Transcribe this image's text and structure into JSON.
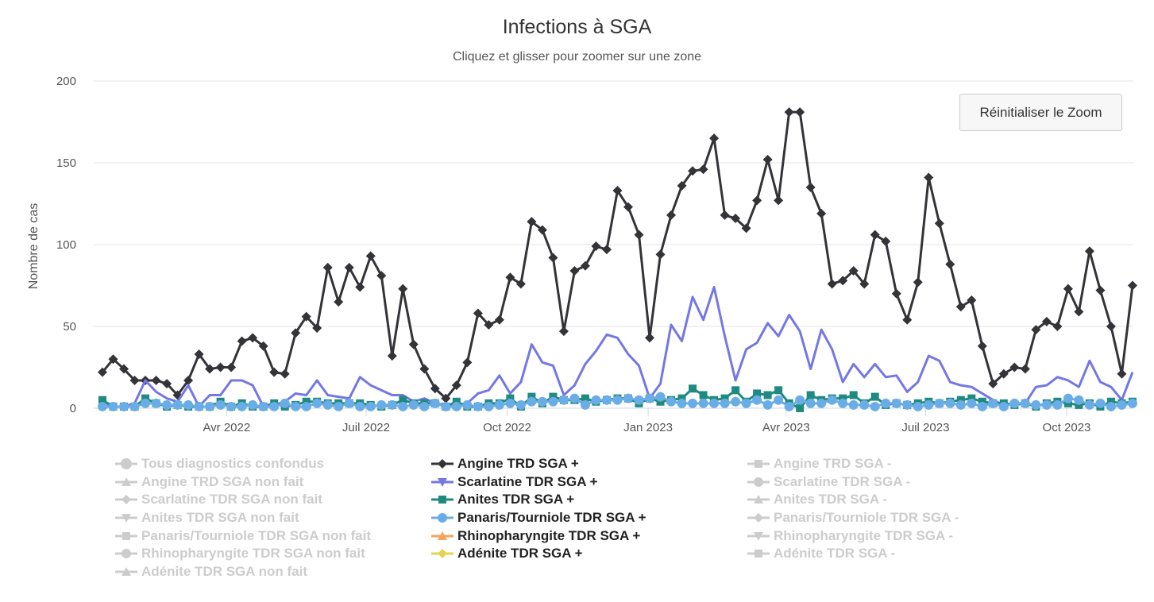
{
  "chart_data": {
    "type": "line",
    "title": "Infections à SGA",
    "subtitle": "Cliquez et glisser pour zoomer sur une zone",
    "ylabel": "Nombre de cas",
    "xlabel": "",
    "ylim": [
      0,
      200
    ],
    "yticks": [
      "0",
      "50",
      "100",
      "150",
      "200"
    ],
    "xticks": [
      {
        "label": "Avr 2022",
        "date": "2022-04-01"
      },
      {
        "label": "Juil 2022",
        "date": "2022-07-01"
      },
      {
        "label": "Oct 2022",
        "date": "2022-10-01"
      },
      {
        "label": "Jan 2023",
        "date": "2023-01-01"
      },
      {
        "label": "Avr 2023",
        "date": "2023-04-01"
      },
      {
        "label": "Juil 2023",
        "date": "2023-07-01"
      },
      {
        "label": "Oct 2023",
        "date": "2023-10-01"
      }
    ],
    "grid": true,
    "legend_position": "bottom",
    "x": [
      "2022-01-10",
      "2022-01-17",
      "2022-01-24",
      "2022-01-31",
      "2022-02-07",
      "2022-02-14",
      "2022-02-21",
      "2022-02-28",
      "2022-03-07",
      "2022-03-14",
      "2022-03-21",
      "2022-03-28",
      "2022-04-04",
      "2022-04-11",
      "2022-04-18",
      "2022-04-25",
      "2022-05-02",
      "2022-05-09",
      "2022-05-16",
      "2022-05-23",
      "2022-05-30",
      "2022-06-06",
      "2022-06-13",
      "2022-06-20",
      "2022-06-27",
      "2022-07-04",
      "2022-07-11",
      "2022-07-18",
      "2022-07-25",
      "2022-08-01",
      "2022-08-08",
      "2022-08-15",
      "2022-08-22",
      "2022-08-29",
      "2022-09-05",
      "2022-09-12",
      "2022-09-19",
      "2022-09-26",
      "2022-10-03",
      "2022-10-10",
      "2022-10-17",
      "2022-10-24",
      "2022-10-31",
      "2022-11-07",
      "2022-11-14",
      "2022-11-21",
      "2022-11-28",
      "2022-12-05",
      "2022-12-12",
      "2022-12-19",
      "2022-12-26",
      "2023-01-02",
      "2023-01-09",
      "2023-01-16",
      "2023-01-23",
      "2023-01-30",
      "2023-02-06",
      "2023-02-13",
      "2023-02-20",
      "2023-02-27",
      "2023-03-06",
      "2023-03-13",
      "2023-03-20",
      "2023-03-27",
      "2023-04-03",
      "2023-04-10",
      "2023-04-17",
      "2023-04-24",
      "2023-05-01",
      "2023-05-08",
      "2023-05-15",
      "2023-05-22",
      "2023-05-29",
      "2023-06-05",
      "2023-06-12",
      "2023-06-19",
      "2023-06-26",
      "2023-07-03",
      "2023-07-10",
      "2023-07-17",
      "2023-07-24",
      "2023-07-31",
      "2023-08-07",
      "2023-08-14",
      "2023-08-21",
      "2023-08-28",
      "2023-09-04",
      "2023-09-11",
      "2023-09-18",
      "2023-09-25",
      "2023-10-02",
      "2023-10-09",
      "2023-10-16",
      "2023-10-23",
      "2023-10-30",
      "2023-11-06",
      "2023-11-13"
    ],
    "series": [
      {
        "name": "Angine TRD SGA +",
        "color": "#333338",
        "marker": "diamond",
        "values": [
          22,
          30,
          24,
          17,
          17,
          17,
          15,
          8,
          17,
          33,
          24,
          25,
          25,
          41,
          43,
          38,
          22,
          21,
          46,
          56,
          49,
          86,
          65,
          86,
          74,
          93,
          81,
          32,
          73,
          39,
          24,
          12,
          6,
          14,
          28,
          58,
          51,
          54,
          80,
          76,
          114,
          109,
          92,
          47,
          84,
          87,
          99,
          97,
          133,
          123,
          106,
          43,
          94,
          118,
          136,
          145,
          146,
          165,
          118,
          116,
          110,
          127,
          152,
          127,
          181,
          181,
          135,
          119,
          76,
          78,
          84,
          76,
          106,
          102,
          70,
          54,
          77,
          141,
          113,
          88,
          62,
          66,
          38,
          15,
          21,
          25,
          24,
          48,
          53,
          50,
          73,
          59,
          96,
          72,
          50,
          21,
          75
        ]
      },
      {
        "name": "Scarlatine TDR SGA +",
        "color": "#7477e4",
        "marker": "none",
        "values": [
          2,
          1,
          1,
          3,
          17,
          10,
          6,
          4,
          14,
          1,
          8,
          8,
          17,
          17,
          14,
          1,
          2,
          4,
          9,
          8,
          17,
          8,
          7,
          6,
          19,
          14,
          11,
          8,
          8,
          4,
          6,
          3,
          2,
          2,
          3,
          9,
          11,
          20,
          9,
          16,
          39,
          28,
          26,
          8,
          14,
          27,
          35,
          45,
          43,
          33,
          26,
          6,
          15,
          51,
          41,
          68,
          54,
          74,
          44,
          17,
          36,
          40,
          52,
          44,
          57,
          47,
          24,
          48,
          36,
          16,
          27,
          19,
          27,
          19,
          20,
          10,
          16,
          32,
          29,
          16,
          14,
          13,
          9,
          5,
          2,
          3,
          3,
          13,
          14,
          19,
          17,
          13,
          29,
          16,
          13,
          5,
          22
        ]
      },
      {
        "name": "Anites TDR SGA +",
        "color": "#1e8a80",
        "marker": "square",
        "values": [
          5,
          1,
          1,
          1,
          6,
          3,
          1,
          2,
          1,
          1,
          1,
          4,
          1,
          3,
          1,
          1,
          3,
          1,
          2,
          4,
          4,
          3,
          3,
          3,
          3,
          2,
          1,
          2,
          5,
          3,
          3,
          3,
          1,
          4,
          1,
          1,
          3,
          3,
          6,
          1,
          7,
          3,
          7,
          5,
          5,
          6,
          4,
          5,
          6,
          6,
          3,
          6,
          4,
          5,
          6,
          12,
          8,
          5,
          6,
          11,
          4,
          9,
          8,
          11,
          3,
          0,
          8,
          5,
          6,
          6,
          8,
          3,
          7,
          2,
          3,
          2,
          3,
          4,
          3,
          4,
          5,
          6,
          4,
          3,
          3,
          2,
          3,
          1,
          3,
          4,
          3,
          2,
          3,
          1,
          4,
          3,
          4
        ]
      },
      {
        "name": "Panaris/Tourniole TDR SGA +",
        "color": "#6aade6",
        "marker": "circle",
        "values": [
          1,
          1,
          1,
          1,
          3,
          3,
          2,
          2,
          2,
          1,
          1,
          2,
          1,
          1,
          2,
          1,
          1,
          3,
          1,
          1,
          3,
          2,
          1,
          3,
          1,
          1,
          2,
          2,
          1,
          2,
          1,
          3,
          1,
          1,
          2,
          1,
          1,
          2,
          3,
          2,
          4,
          4,
          4,
          5,
          6,
          2,
          5,
          5,
          5,
          6,
          5,
          6,
          7,
          4,
          3,
          3,
          3,
          3,
          3,
          4,
          3,
          5,
          2,
          5,
          1,
          5,
          3,
          3,
          5,
          3,
          2,
          2,
          1,
          3,
          3,
          2,
          1,
          2,
          3,
          3,
          2,
          3,
          1,
          3,
          1,
          3,
          3,
          2,
          2,
          2,
          6,
          5,
          2,
          3,
          1,
          2,
          3
        ]
      }
    ]
  },
  "reset_zoom_label": "Réinitialiser le Zoom",
  "legend": [
    {
      "label": "Tous diagnostics confondus",
      "symbol": "circle",
      "color": "#cccccc",
      "visible": false
    },
    {
      "label": "Angine TRD SGA +",
      "symbol": "diamond",
      "color": "#333338",
      "visible": true
    },
    {
      "label": "Angine TRD SGA -",
      "symbol": "square",
      "color": "#cccccc",
      "visible": false
    },
    {
      "label": "Angine TRD SGA non fait",
      "symbol": "triangle",
      "color": "#cccccc",
      "visible": false
    },
    {
      "label": "Scarlatine TDR SGA +",
      "symbol": "triangle-down",
      "color": "#7477e4",
      "visible": true
    },
    {
      "label": "Scarlatine TDR SGA -",
      "symbol": "circle",
      "color": "#cccccc",
      "visible": false
    },
    {
      "label": "Scarlatine TDR SGA non fait",
      "symbol": "diamond",
      "color": "#cccccc",
      "visible": false
    },
    {
      "label": "Anites TDR SGA +",
      "symbol": "square",
      "color": "#1e8a80",
      "visible": true
    },
    {
      "label": "Anites TDR SGA -",
      "symbol": "triangle",
      "color": "#cccccc",
      "visible": false
    },
    {
      "label": "Anites TDR SGA non fait",
      "symbol": "triangle-down",
      "color": "#cccccc",
      "visible": false
    },
    {
      "label": "Panaris/Tourniole TDR SGA +",
      "symbol": "circle",
      "color": "#6aade6",
      "visible": true
    },
    {
      "label": "Panaris/Tourniole TDR SGA -",
      "symbol": "diamond",
      "color": "#cccccc",
      "visible": false
    },
    {
      "label": "Panaris/Tourniole TDR SGA non fait",
      "symbol": "square",
      "color": "#cccccc",
      "visible": false
    },
    {
      "label": "Rhinopharyngite TDR SGA +",
      "symbol": "triangle",
      "color": "#f7a35c",
      "visible": true
    },
    {
      "label": "Rhinopharyngite TDR SGA -",
      "symbol": "triangle-down",
      "color": "#cccccc",
      "visible": false
    },
    {
      "label": "Rhinopharyngite TDR SGA non fait",
      "symbol": "circle",
      "color": "#cccccc",
      "visible": false
    },
    {
      "label": "Adénite TDR SGA +",
      "symbol": "diamond",
      "color": "#e4d354",
      "visible": true
    },
    {
      "label": "Adénite TDR SGA -",
      "symbol": "square",
      "color": "#cccccc",
      "visible": false
    },
    {
      "label": "Adénite TDR SGA non fait",
      "symbol": "triangle",
      "color": "#cccccc",
      "visible": false
    }
  ]
}
